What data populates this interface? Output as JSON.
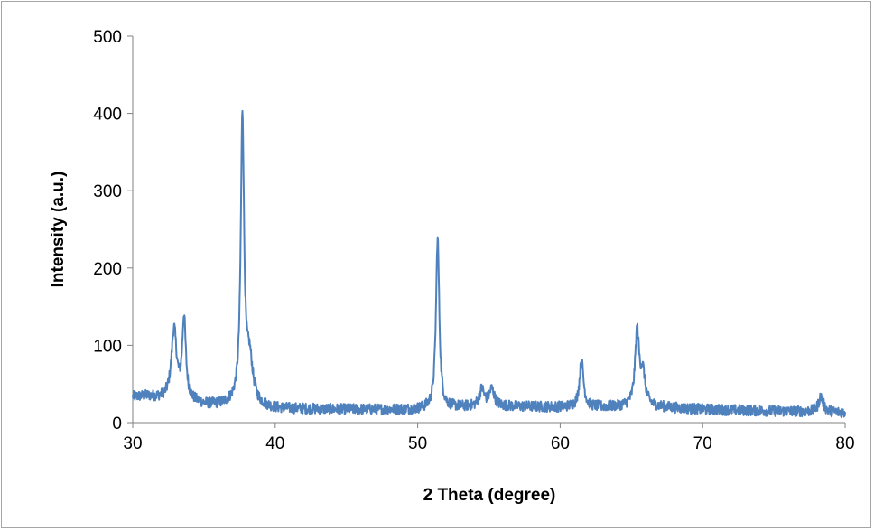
{
  "chart_data": {
    "type": "line",
    "title": "",
    "xlabel": "2 Theta (degree)",
    "ylabel": "Intensity (a.u.)",
    "xlim": [
      30,
      80
    ],
    "ylim": [
      0,
      500
    ],
    "xticks": [
      30,
      40,
      50,
      60,
      70,
      80
    ],
    "yticks": [
      0,
      100,
      200,
      300,
      400,
      500
    ],
    "grid": false,
    "legend": "none",
    "line_color": "#4f81bd",
    "baseline": [
      [
        30,
        33
      ],
      [
        31,
        34
      ],
      [
        32,
        31
      ],
      [
        34,
        27
      ],
      [
        35,
        23
      ],
      [
        36,
        22
      ],
      [
        37,
        24
      ],
      [
        40,
        18
      ],
      [
        45,
        17
      ],
      [
        50,
        17
      ],
      [
        53,
        20
      ],
      [
        56,
        21
      ],
      [
        60,
        20
      ],
      [
        63,
        20
      ],
      [
        66,
        21
      ],
      [
        70,
        17
      ],
      [
        75,
        15
      ],
      [
        78,
        14
      ],
      [
        80,
        13
      ]
    ],
    "noise_amplitude": 7,
    "peaks": [
      {
        "x": 32.9,
        "height": 90,
        "width": 0.22
      },
      {
        "x": 33.6,
        "height": 105,
        "width": 0.15
      },
      {
        "x": 37.7,
        "height": 370,
        "width": 0.14
      },
      {
        "x": 38.2,
        "height": 55,
        "width": 0.28
      },
      {
        "x": 51.4,
        "height": 220,
        "width": 0.14
      },
      {
        "x": 54.5,
        "height": 22,
        "width": 0.2
      },
      {
        "x": 55.2,
        "height": 22,
        "width": 0.22
      },
      {
        "x": 61.5,
        "height": 60,
        "width": 0.17
      },
      {
        "x": 65.4,
        "height": 95,
        "width": 0.17
      },
      {
        "x": 65.8,
        "height": 40,
        "width": 0.2
      },
      {
        "x": 78.3,
        "height": 20,
        "width": 0.2
      }
    ]
  }
}
